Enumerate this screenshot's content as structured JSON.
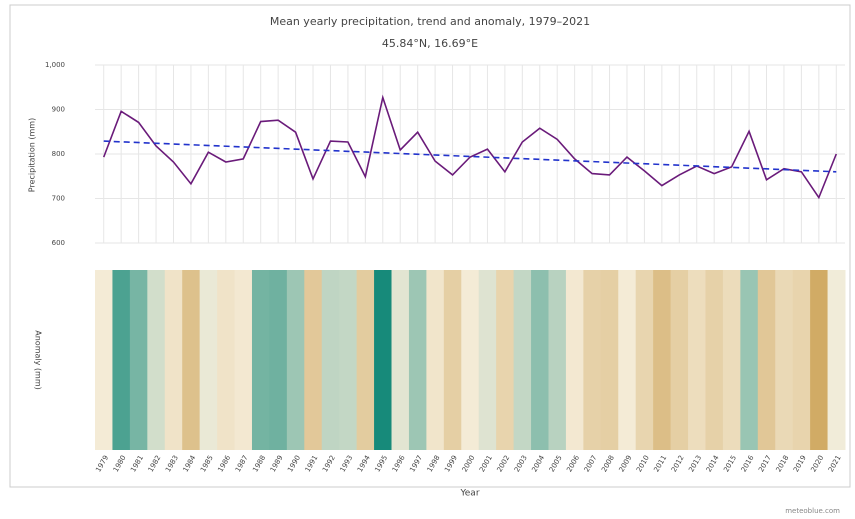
{
  "chart_data": {
    "type": "line",
    "title": "Mean yearly precipitation, trend and anomaly, 1979–2021",
    "subtitle": "45.84°N, 16.69°E",
    "y_label": "Precipitation (mm)",
    "stripes_label": "Anomaly (mm)",
    "x_label": "Year",
    "source": "meteoblue.com",
    "categories": [
      "1979",
      "1980",
      "1981",
      "1982",
      "1983",
      "1984",
      "1985",
      "1986",
      "1987",
      "1988",
      "1989",
      "1990",
      "1991",
      "1992",
      "1993",
      "1994",
      "1995",
      "1996",
      "1997",
      "1998",
      "1999",
      "2000",
      "2001",
      "2002",
      "2003",
      "2004",
      "2005",
      "2006",
      "2007",
      "2008",
      "2009",
      "2010",
      "2011",
      "2012",
      "2013",
      "2014",
      "2015",
      "2016",
      "2017",
      "2018",
      "2019",
      "2020",
      "2021"
    ],
    "series": [
      {
        "name": "Precipitation",
        "color": "#6a1b7a",
        "values": [
          793,
          896,
          871,
          818,
          782,
          733,
          804,
          782,
          789,
          873,
          876,
          849,
          744,
          829,
          827,
          749,
          927,
          809,
          849,
          784,
          753,
          793,
          811,
          760,
          827,
          858,
          833,
          789,
          756,
          753,
          793,
          762,
          729,
          753,
          773,
          756,
          771,
          851,
          742,
          767,
          760,
          702,
          800
        ]
      },
      {
        "name": "Trend",
        "color": "#2233cc",
        "dashed": true,
        "values": [
          829,
          null,
          null,
          null,
          null,
          null,
          null,
          null,
          null,
          null,
          null,
          null,
          null,
          null,
          null,
          null,
          null,
          null,
          null,
          null,
          null,
          null,
          null,
          null,
          null,
          null,
          null,
          null,
          null,
          null,
          null,
          null,
          null,
          null,
          null,
          null,
          null,
          null,
          null,
          null,
          null,
          null,
          760
        ]
      }
    ],
    "ylim": [
      600,
      1000
    ],
    "yticks": [
      600,
      700,
      800,
      900,
      {
        "value": 1000,
        "label": "1,000"
      }
    ],
    "grid": true,
    "stripe_colors": {
      "dry": "#c4923a",
      "neutral": "#f6eedb",
      "wet": "#178a7a"
    }
  }
}
